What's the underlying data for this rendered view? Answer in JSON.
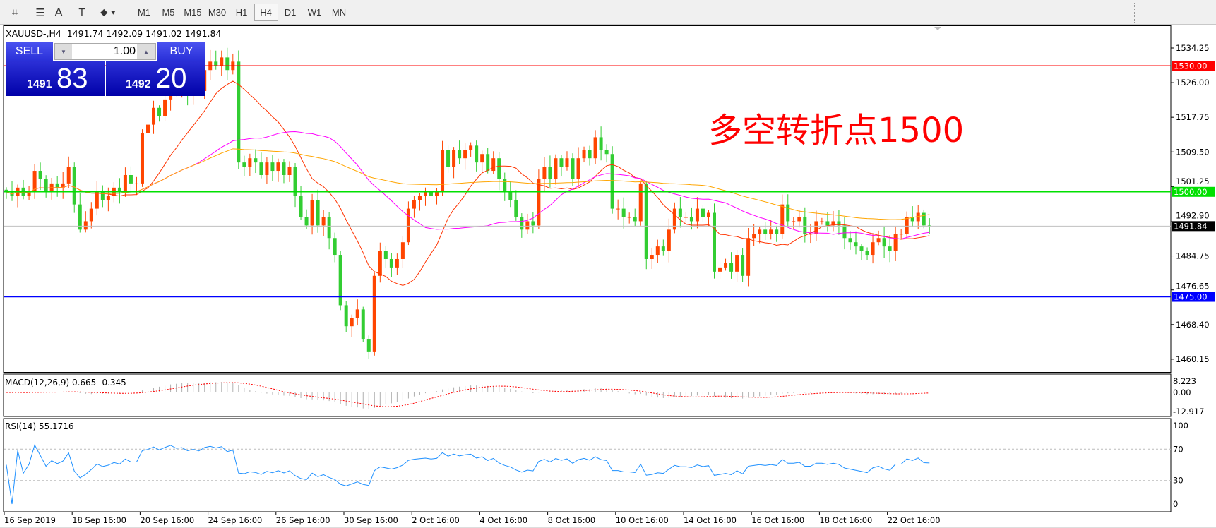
{
  "toolbar": {
    "tools": [
      "line-studies-icon",
      "fibo-icon",
      "text-icon",
      "text-label-icon",
      "arrows-icon"
    ],
    "text_tool": "A",
    "timeframes": [
      "M1",
      "M5",
      "M15",
      "M30",
      "H1",
      "H4",
      "D1",
      "W1",
      "MN"
    ],
    "active_timeframe": "H4"
  },
  "chart": {
    "title": "XAUUSD-,H4  1491.74 1492.09 1491.02 1491.84",
    "symbol": "XAUUSD-",
    "timeframe": "H4",
    "ohlc": {
      "open": 1491.74,
      "high": 1492.09,
      "low": 1491.02,
      "close": 1491.84
    }
  },
  "trade_panel": {
    "sell_label": "SELL",
    "buy_label": "BUY",
    "lot": "1.00",
    "sell_big": "1491",
    "sell_small": "83",
    "buy_big": "1492",
    "buy_small": "20"
  },
  "annotation": "多空转折点1500",
  "colors": {
    "up": "#ff4500",
    "down": "#32cd32",
    "resistance": "#ff0000",
    "pivot": "#00e000",
    "support": "#0000ff",
    "ma_fast": "#ff3300",
    "ma_mid": "#ff00ff",
    "ma_slow": "#ffa500",
    "rsi": "#1e90ff",
    "macd_signal": "#ff0000"
  },
  "chart_data": {
    "type": "candlestick",
    "price_ticks": [
      "1534.25",
      "1526.00",
      "1517.75",
      "1509.50",
      "1501.25",
      "1492.90",
      "1484.75",
      "1476.65",
      "1468.40",
      "1460.15"
    ],
    "horizontal_lines": [
      {
        "price": 1530.0,
        "label": "1530.00",
        "color": "#ff0000"
      },
      {
        "price": 1500.0,
        "label": "1500.00",
        "color": "#00e000"
      },
      {
        "price": 1475.0,
        "label": "1475.00",
        "color": "#0000ff"
      }
    ],
    "current_price": {
      "price": 1491.84,
      "label": "1491.84"
    },
    "time_labels": [
      "16 Sep 2019",
      "18 Sep 16:00",
      "20 Sep 16:00",
      "24 Sep 16:00",
      "26 Sep 16:00",
      "30 Sep 16:00",
      "2 Oct 16:00",
      "4 Oct 16:00",
      "8 Oct 16:00",
      "10 Oct 16:00",
      "14 Oct 16:00",
      "16 Oct 16:00",
      "18 Oct 16:00",
      "22 Oct 16:00"
    ],
    "closes": [
      1500,
      1499,
      1501,
      1499,
      1500,
      1505,
      1503,
      1500,
      1502,
      1501,
      1502,
      1506,
      1497,
      1491,
      1493,
      1496,
      1500,
      1498,
      1499,
      1501,
      1500,
      1504,
      1502,
      1502,
      1514,
      1516,
      1520,
      1518,
      1522,
      1526,
      1524,
      1525,
      1523,
      1525,
      1524,
      1529,
      1531,
      1530,
      1532,
      1529,
      1531,
      1507,
      1506,
      1508,
      1507,
      1504,
      1507,
      1505,
      1507,
      1504,
      1506,
      1499,
      1494,
      1492,
      1498,
      1492,
      1494,
      1489,
      1485,
      1473,
      1468,
      1470,
      1472,
      1465,
      1462,
      1480,
      1486,
      1484,
      1482,
      1484,
      1488,
      1496,
      1498,
      1499,
      1500,
      1499,
      1500,
      1510,
      1506,
      1510,
      1508,
      1510,
      1511,
      1507,
      1509,
      1505,
      1508,
      1503,
      1500,
      1498,
      1494,
      1491,
      1493,
      1492,
      1503,
      1506,
      1503,
      1508,
      1506,
      1508,
      1503,
      1508,
      1510,
      1508,
      1513,
      1510,
      1509,
      1496,
      1496,
      1494,
      1494,
      1493,
      1502,
      1484,
      1485,
      1487,
      1486,
      1491,
      1496,
      1494,
      1494,
      1493,
      1496,
      1494,
      1495,
      1481,
      1482,
      1483,
      1481,
      1485,
      1480,
      1489,
      1490,
      1491,
      1490,
      1491,
      1490,
      1497,
      1493,
      1493,
      1494,
      1490,
      1490,
      1493,
      1493,
      1492,
      1493,
      1492,
      1489,
      1488,
      1487,
      1486,
      1485,
      1488,
      1489,
      1487,
      1486,
      1490,
      1490,
      1494,
      1493,
      1495,
      1492,
      1491.84
    ],
    "macd": {
      "label": "MACD(12,26,9) 0.665 -0.345",
      "ticks": [
        "8.223",
        "0.00",
        "-12.917"
      ]
    },
    "rsi": {
      "label": "RSI(14) 55.1716",
      "ticks": [
        "100",
        "70",
        "30",
        "0"
      ],
      "levels": [
        70,
        30
      ]
    }
  }
}
